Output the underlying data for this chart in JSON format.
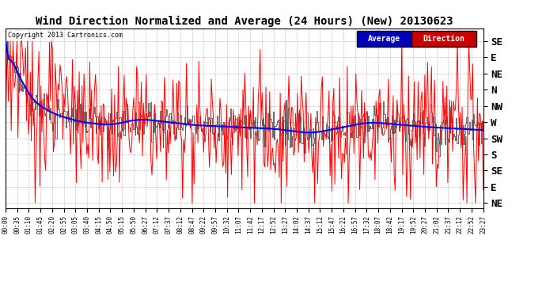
{
  "title": "Wind Direction Normalized and Average (24 Hours) (New) 20130623",
  "copyright": "Copyright 2013 Cartronics.com",
  "legend_labels": [
    "Average",
    "Direction"
  ],
  "legend_bg_colors": [
    "#0000cc",
    "#cc0000"
  ],
  "y_tick_labels": [
    "SE",
    "E",
    "NE",
    "N",
    "NW",
    "W",
    "SW",
    "S",
    "SE",
    "E",
    "NE"
  ],
  "y_tick_positions": [
    10,
    9,
    8,
    7,
    6,
    5,
    4,
    3,
    2,
    1,
    0
  ],
  "ylim": [
    -0.3,
    10.8
  ],
  "background_color": "#ffffff",
  "grid_color": "#999999",
  "title_fontsize": 10,
  "tick_fontsize": 7,
  "x_tick_labels": [
    "00:00",
    "00:35",
    "01:10",
    "01:45",
    "02:20",
    "02:55",
    "03:05",
    "03:40",
    "04:15",
    "04:50",
    "05:15",
    "05:50",
    "06:27",
    "07:12",
    "07:37",
    "08:12",
    "08:47",
    "09:22",
    "09:57",
    "10:32",
    "11:07",
    "11:42",
    "12:17",
    "12:52",
    "13:27",
    "14:02",
    "14:37",
    "15:12",
    "15:47",
    "16:22",
    "16:57",
    "17:32",
    "18:07",
    "18:42",
    "19:17",
    "19:52",
    "20:27",
    "21:02",
    "21:37",
    "22:12",
    "22:52",
    "23:27"
  ]
}
